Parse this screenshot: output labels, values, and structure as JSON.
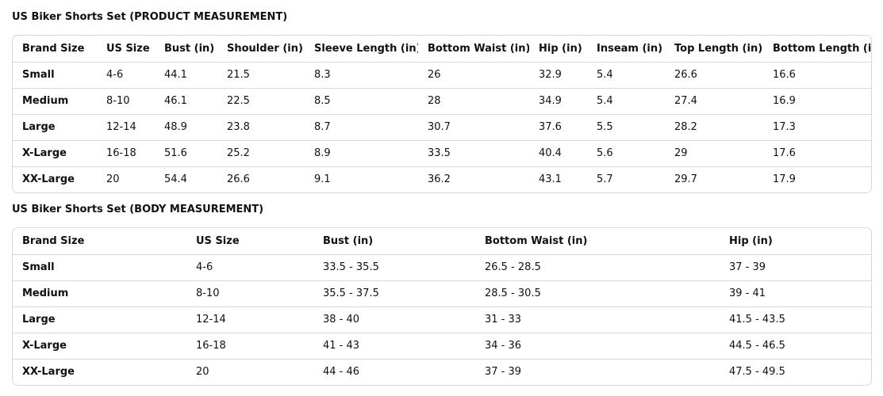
{
  "tables": [
    {
      "title": "US Biker Shorts Set (PRODUCT MEASUREMENT)",
      "header": [
        "Brand Size",
        "US Size",
        "Bust (in)",
        "Shoulder (in)",
        "Sleeve Length (in)",
        "Bottom Waist (in)",
        "Hip (in)",
        "Inseam (in)",
        "Top Length (in)",
        "Bottom Length (in)"
      ],
      "rows": [
        [
          "Small",
          "4-6",
          "44.1",
          "21.5",
          "8.3",
          "26",
          "32.9",
          "5.4",
          "26.6",
          "16.6"
        ],
        [
          "Medium",
          "8-10",
          "46.1",
          "22.5",
          "8.5",
          "28",
          "34.9",
          "5.4",
          "27.4",
          "16.9"
        ],
        [
          "Large",
          "12-14",
          "48.9",
          "23.8",
          "8.7",
          "30.7",
          "37.6",
          "5.5",
          "28.2",
          "17.3"
        ],
        [
          "X-Large",
          "16-18",
          "51.6",
          "25.2",
          "8.9",
          "33.5",
          "40.4",
          "5.6",
          "29",
          "17.6"
        ],
        [
          "XX-Large",
          "20",
          "54.4",
          "26.6",
          "9.1",
          "36.2",
          "43.1",
          "5.7",
          "29.7",
          "17.9"
        ]
      ]
    },
    {
      "title": "US Biker Shorts Set (BODY MEASUREMENT)",
      "header": [
        "Brand Size",
        "US Size",
        "Bust (in)",
        "Bottom Waist (in)",
        "Hip (in)"
      ],
      "rows": [
        [
          "Small",
          "4-6",
          "33.5 - 35.5",
          "26.5 - 28.5",
          "37 - 39"
        ],
        [
          "Medium",
          "8-10",
          "35.5 - 37.5",
          "28.5 - 30.5",
          "39 - 41"
        ],
        [
          "Large",
          "12-14",
          "38 - 40",
          "31 - 33",
          "41.5 - 43.5"
        ],
        [
          "X-Large",
          "16-18",
          "41 - 43",
          "34 - 36",
          "44.5 - 46.5"
        ],
        [
          "XX-Large",
          "20",
          "44 - 46",
          "37 - 39",
          "47.5 - 49.5"
        ]
      ]
    }
  ]
}
